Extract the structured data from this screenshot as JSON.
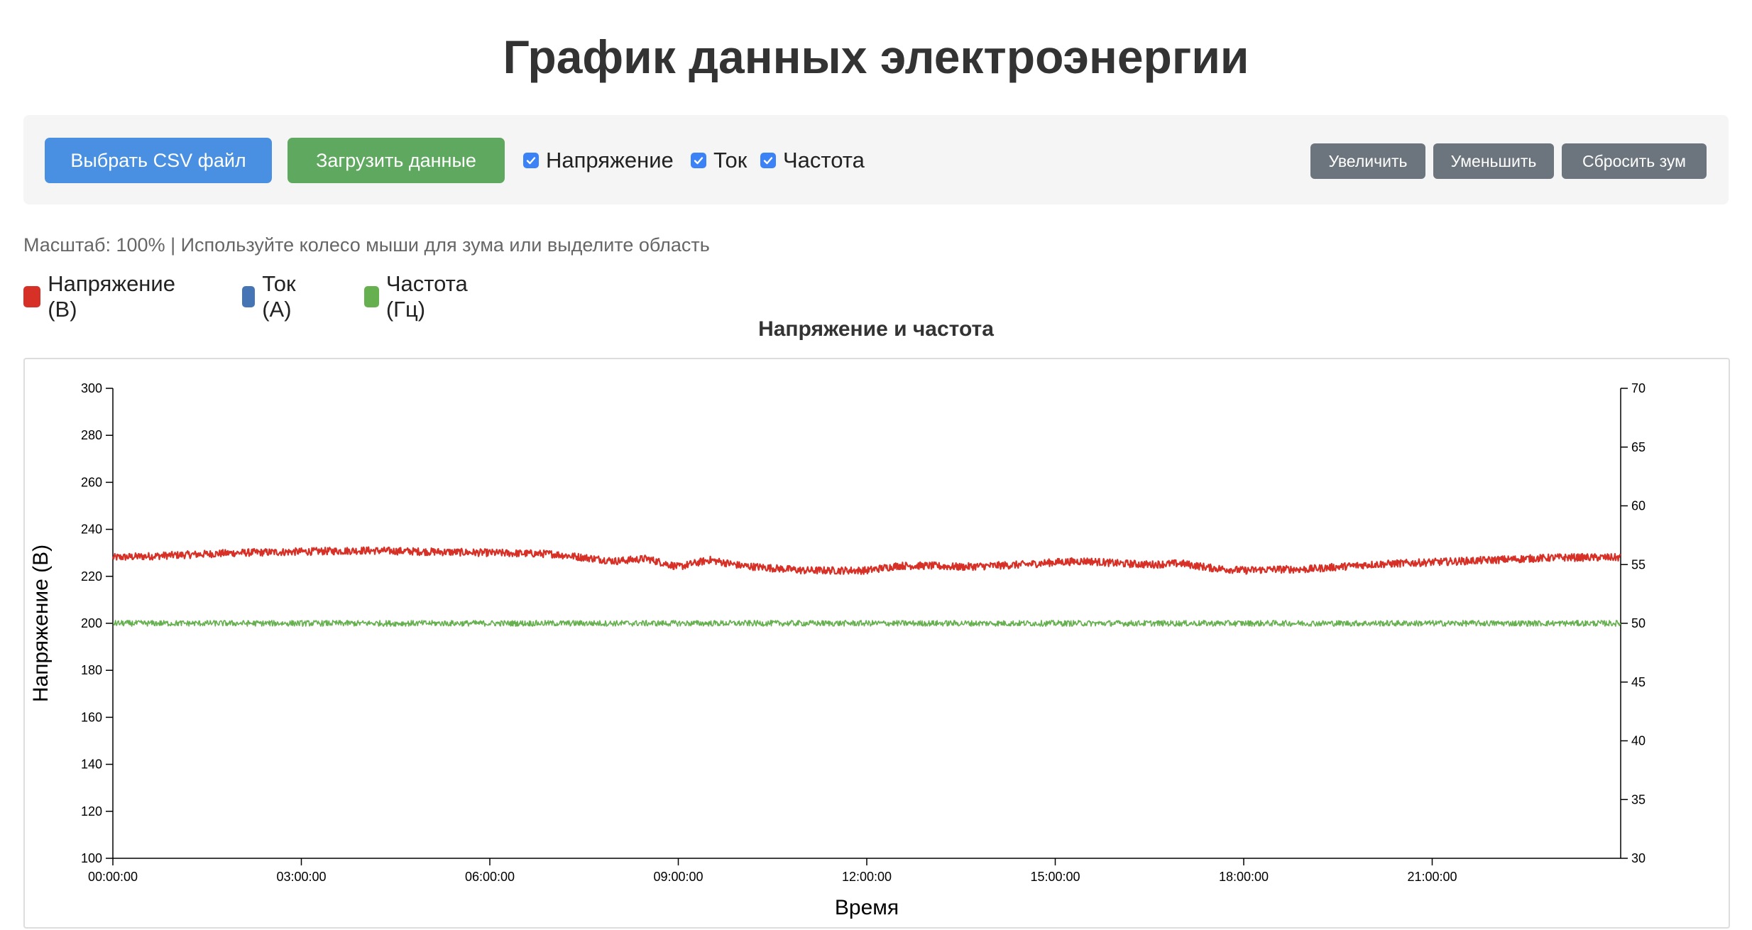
{
  "page": {
    "title": "График данных электроэнергии"
  },
  "toolbar": {
    "choose_file_label": "Выбрать CSV файл",
    "load_data_label": "Загрузить данные",
    "checkboxes": [
      {
        "label": "Напряжение",
        "checked": true
      },
      {
        "label": "Ток",
        "checked": true
      },
      {
        "label": "Частота",
        "checked": true
      }
    ],
    "zoom_in_label": "Увеличить",
    "zoom_out_label": "Уменьшить",
    "reset_zoom_label": "Сбросить зум"
  },
  "info": {
    "text": "Масштаб: 100% | Используйте колесо мыши для зума или выделите область"
  },
  "legend": [
    {
      "label": "Напряжение (В)",
      "color": "#d73027"
    },
    {
      "label": "Ток (А)",
      "color": "#4575b4"
    },
    {
      "label": "Частота (Гц)",
      "color": "#66b050"
    }
  ],
  "chart_data": {
    "type": "line",
    "title": "Напряжение и частота",
    "xlabel": "Время",
    "ylabel_left": "Напряжение (В)",
    "ylabel_right": "Частота (Гц)",
    "x_range_hours": [
      0,
      24
    ],
    "x_ticks": [
      "00:00:00",
      "03:00:00",
      "06:00:00",
      "09:00:00",
      "12:00:00",
      "15:00:00",
      "18:00:00",
      "21:00:00"
    ],
    "ylim_left": [
      100,
      300
    ],
    "yticks_left": [
      100,
      120,
      140,
      160,
      180,
      200,
      220,
      240,
      260,
      280,
      300
    ],
    "ylim_right": [
      30,
      70
    ],
    "yticks_right": [
      30,
      35,
      40,
      45,
      50,
      55,
      60,
      65,
      70
    ],
    "grid": false,
    "series": [
      {
        "name": "Напряжение (В)",
        "axis": "left",
        "color": "#d73027",
        "x_hours": [
          0,
          1,
          2,
          3,
          4,
          5,
          6,
          7,
          7.5,
          8,
          8.5,
          9,
          9.5,
          10,
          10.5,
          11,
          11.5,
          12,
          12.5,
          13,
          13.5,
          14,
          14.5,
          15,
          15.5,
          16,
          16.5,
          17,
          17.5,
          18,
          18.5,
          19,
          19.5,
          20,
          21,
          22,
          23,
          24
        ],
        "values": [
          228,
          229,
          230,
          230.5,
          231,
          230.5,
          230,
          229.5,
          228,
          226.5,
          227.5,
          224,
          227,
          224.5,
          223.5,
          222.5,
          222.5,
          222.5,
          224.5,
          224.5,
          224,
          224.5,
          225,
          226,
          226.5,
          225.5,
          225,
          225.5,
          223.5,
          222.5,
          223,
          223,
          224,
          225,
          226,
          227,
          228,
          228
        ]
      },
      {
        "name": "Частота (Гц)",
        "axis": "right",
        "color": "#66b050",
        "x_hours": [
          0,
          24
        ],
        "values": [
          50,
          50
        ]
      }
    ]
  }
}
